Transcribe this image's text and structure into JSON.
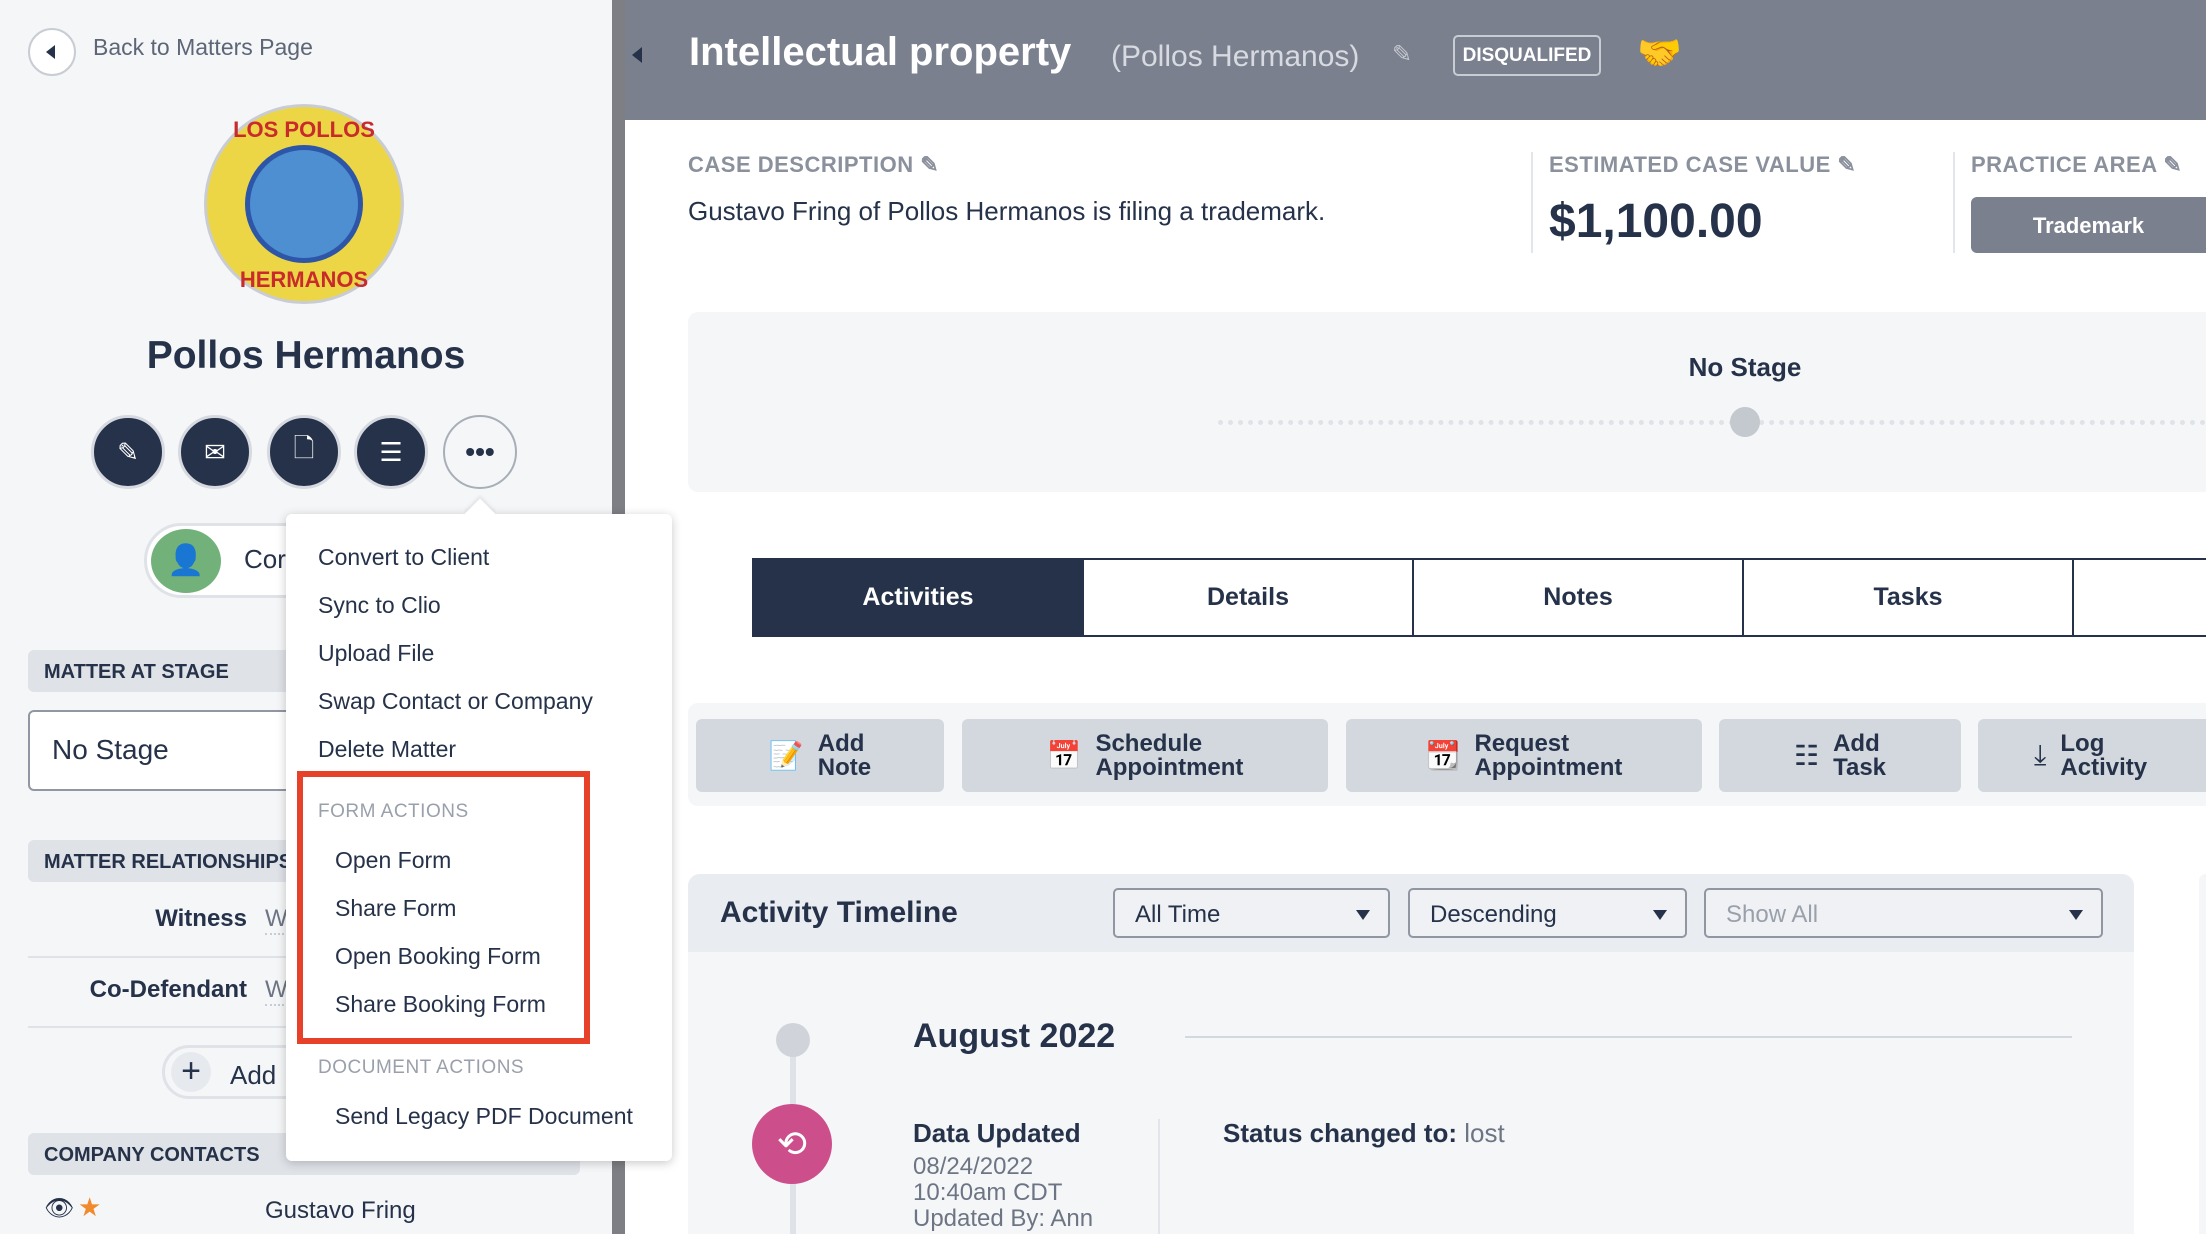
{
  "sidebar": {
    "back_label": "Back to Matters Page",
    "company_name": "Pollos Hermanos",
    "logo_text": {
      "top": "LOS POLLOS",
      "bottom": "HERMANOS"
    },
    "actions": [
      {
        "icon": "pencil-icon"
      },
      {
        "icon": "envelope-icon"
      },
      {
        "icon": "document-icon"
      },
      {
        "icon": "stack-icon"
      },
      {
        "icon": "more-icon",
        "glyph": "•••"
      }
    ],
    "contact_button_label": "Cor",
    "matter_at_stage": {
      "heading": "MATTER AT STAGE",
      "value": "No Stage"
    },
    "relationships": {
      "heading": "MATTER RELATIONSHIPS",
      "items": [
        {
          "role": "Witness",
          "value": "W"
        },
        {
          "role": "Co-Defendant",
          "value": "W"
        }
      ],
      "add_label": "Add"
    },
    "company_contacts": {
      "heading": "COMPANY CONTACTS",
      "items": [
        {
          "name": "Gustavo Fring"
        }
      ]
    }
  },
  "menu": {
    "items": [
      "Convert to Client",
      "Sync to Clio",
      "Upload File",
      "Swap Contact or Company",
      "Delete Matter"
    ],
    "form_actions": {
      "heading": "FORM ACTIONS",
      "items": [
        "Open Form",
        "Share Form",
        "Open Booking Form",
        "Share Booking Form"
      ]
    },
    "document_actions": {
      "heading": "DOCUMENT ACTIONS",
      "items": [
        "Send Legacy PDF Document"
      ]
    },
    "highlight_color": "#e8412a"
  },
  "header": {
    "title": "Intellectual property",
    "subtitle": "(Pollos Hermanos)",
    "status_badge": "DISQUALIFED"
  },
  "summary": {
    "case_description_label": "CASE DESCRIPTION",
    "case_description": "Gustavo Fring of Pollos Hermanos is filing a trademark.",
    "estimated_value_label": "ESTIMATED CASE VALUE",
    "estimated_value": "$1,100.00",
    "practice_area_label": "PRACTICE AREA",
    "practice_area": "Trademark"
  },
  "stage": {
    "name": "No Stage"
  },
  "tabs": [
    {
      "label": "Activities",
      "active": true
    },
    {
      "label": "Details"
    },
    {
      "label": "Notes"
    },
    {
      "label": "Tasks"
    },
    {
      "label": ""
    }
  ],
  "quick_actions": [
    {
      "line1": "Add",
      "line2": "Note",
      "icon": "add-note-icon"
    },
    {
      "line1": "Schedule",
      "line2": "Appointment",
      "icon": "calendar-icon"
    },
    {
      "line1": "Request",
      "line2": "Appointment",
      "icon": "calendar-request-icon"
    },
    {
      "line1": "Add",
      "line2": "Task",
      "icon": "checklist-icon"
    },
    {
      "line1": "Log",
      "line2": "Activity",
      "icon": "download-icon"
    }
  ],
  "timeline": {
    "title": "Activity Timeline",
    "filters": {
      "time": "All Time",
      "order": "Descending",
      "type_placeholder": "Show All"
    },
    "month": "August 2022",
    "events": [
      {
        "title": "Data Updated",
        "date": "08/24/2022",
        "time": "10:40am CDT",
        "updated_by": "Updated By: Ann",
        "detail_label": "Status changed to:",
        "detail_value": "lost"
      }
    ]
  },
  "colors": {
    "header": "#7a808e",
    "navy": "#253249",
    "event_icon": "#cc4f8c",
    "contact_avatar": "#72b27a"
  }
}
